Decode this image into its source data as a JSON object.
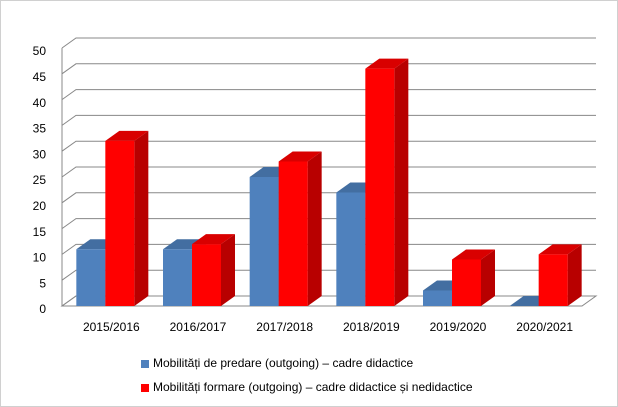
{
  "chart_data": {
    "type": "bar3d",
    "categories": [
      "2015/2016",
      "2016/2017",
      "2017/2018",
      "2018/2019",
      "2019/2020",
      "2020/2021"
    ],
    "series": [
      {
        "name": "Mobilități de predare (outgoing) – cadre didactice",
        "color": "#4f81bd",
        "values": [
          11,
          11,
          25,
          22,
          3,
          0
        ]
      },
      {
        "name": "Mobilități formare (outgoing) – cadre didactice și nedidactice",
        "color": "#ff0000",
        "values": [
          32,
          12,
          28,
          46,
          9,
          10
        ]
      }
    ],
    "ylim": [
      0,
      50
    ],
    "yticks": [
      0,
      5,
      10,
      15,
      20,
      25,
      30,
      35,
      40,
      45,
      50
    ],
    "grid": true,
    "legend": "bottom"
  }
}
